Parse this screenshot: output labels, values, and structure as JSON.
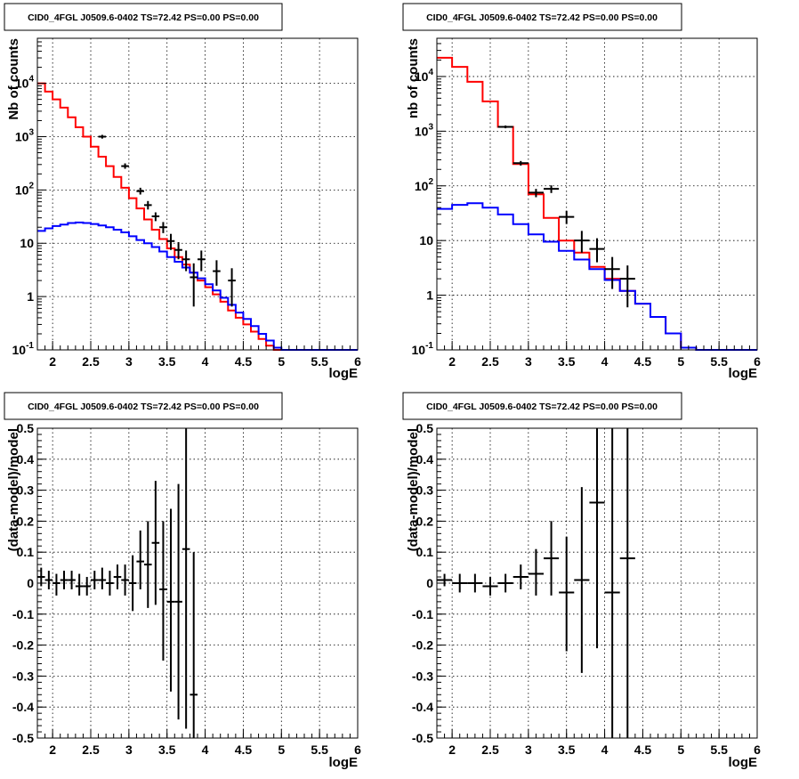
{
  "chart_data": [
    {
      "type": "line",
      "title": "CID0_4FGL J0509.6-0402 TS=72.42 PS=0.00 PS=0.00",
      "xlabel": "logE",
      "ylabel": "Nb of counts",
      "xlim": [
        1.8,
        6.0
      ],
      "ylim": [
        0.1,
        70000
      ],
      "yscale": "log",
      "grid": true,
      "x_ticks": [
        "2",
        "2.5",
        "3",
        "3.5",
        "4",
        "4.5",
        "5",
        "5.5",
        "6"
      ],
      "y_ticks": [
        "10^-1",
        "1",
        "10",
        "10^2",
        "10^3",
        "10^4"
      ],
      "bin_edges": [
        1.8,
        1.9,
        2.0,
        2.1,
        2.2,
        2.3,
        2.4,
        2.5,
        2.6,
        2.7,
        2.8,
        2.9,
        3.0,
        3.1,
        3.2,
        3.3,
        3.4,
        3.5,
        3.6,
        3.7,
        3.8,
        3.9,
        4.0,
        4.1,
        4.2,
        4.3,
        4.4,
        4.5,
        4.6,
        4.7,
        4.8,
        4.9,
        5.0,
        5.1,
        5.2,
        5.3,
        5.4,
        5.5,
        5.6,
        5.7,
        5.8,
        5.9,
        6.0
      ],
      "series": [
        {
          "color": "#ff0000",
          "values": [
            10000,
            7000,
            5000,
            3500,
            2300,
            1500,
            1000,
            650,
            420,
            280,
            175,
            110,
            70,
            45,
            28,
            18,
            12,
            8,
            5.5,
            4,
            2.8,
            2,
            1.5,
            1.1,
            0.8,
            0.55,
            0.4,
            0.3,
            0.22,
            0.16,
            0.12,
            0.1,
            0.1,
            0.1,
            0.1,
            0.1,
            0.1,
            0.1,
            0.1,
            0.1,
            0.1,
            0.1
          ]
        },
        {
          "color": "#0000ff",
          "values": [
            17,
            19,
            21,
            22.5,
            24,
            24.5,
            24,
            23,
            21.5,
            20,
            18,
            16,
            13.5,
            11.5,
            10,
            8.5,
            7,
            5.5,
            4.5,
            3.5,
            2.8,
            2.2,
            1.7,
            1.3,
            0.95,
            0.7,
            0.5,
            0.38,
            0.28,
            0.2,
            0.15,
            0.11,
            0.1,
            0.1,
            0.1,
            0.1,
            0.1,
            0.1,
            0.1,
            0.1,
            0.1,
            0.1
          ]
        },
        {
          "color": "#000000",
          "points": [
            {
              "x": 2.65,
              "y": 1000,
              "lo": 920,
              "hi": 1080
            },
            {
              "x": 2.95,
              "y": 280,
              "lo": 250,
              "hi": 315
            },
            {
              "x": 3.15,
              "y": 95,
              "lo": 82,
              "hi": 110
            },
            {
              "x": 3.25,
              "y": 52,
              "lo": 43,
              "hi": 62
            },
            {
              "x": 3.35,
              "y": 32,
              "lo": 26,
              "hi": 38
            },
            {
              "x": 3.45,
              "y": 20,
              "lo": 15.5,
              "hi": 25
            },
            {
              "x": 3.55,
              "y": 11,
              "lo": 7.5,
              "hi": 15
            },
            {
              "x": 3.65,
              "y": 7.5,
              "lo": 5,
              "hi": 10.5
            },
            {
              "x": 3.75,
              "y": 5,
              "lo": 3,
              "hi": 7.3
            },
            {
              "x": 3.85,
              "y": 2.3,
              "lo": 0.65,
              "hi": 4.2
            },
            {
              "x": 3.95,
              "y": 5,
              "lo": 3,
              "hi": 7.3
            },
            {
              "x": 4.15,
              "y": 3,
              "lo": 1.6,
              "hi": 4.8
            },
            {
              "x": 4.35,
              "y": 2,
              "lo": 0.65,
              "hi": 3.4
            }
          ]
        }
      ]
    },
    {
      "type": "line",
      "title": "CID0_4FGL J0509.6-0402 TS=72.42 PS=0.00 PS=0.00",
      "xlabel": "logE",
      "ylabel": "nb of counts",
      "xlim": [
        1.8,
        6.0
      ],
      "ylim": [
        0.1,
        50000
      ],
      "yscale": "log",
      "grid": true,
      "x_ticks": [
        "2",
        "2.5",
        "3",
        "3.5",
        "4",
        "4.5",
        "5",
        "5.5",
        "6"
      ],
      "y_ticks": [
        "10^-1",
        "1",
        "10",
        "10^2",
        "10^3",
        "10^4"
      ],
      "bin_edges": [
        1.8,
        2.0,
        2.2,
        2.4,
        2.6,
        2.8,
        3.0,
        3.2,
        3.4,
        3.6,
        3.8,
        4.0,
        4.2,
        4.4,
        4.6,
        4.8,
        5.0,
        5.2,
        5.4,
        5.6,
        5.8,
        6.0
      ],
      "series": [
        {
          "color": "#ff0000",
          "values": [
            22000,
            15000,
            8000,
            3500,
            1200,
            250,
            70,
            26,
            10,
            6,
            3.3,
            2,
            1.2,
            0.7,
            0.4,
            0.2,
            0.11,
            0.1,
            0.1,
            0.1,
            0.1
          ]
        },
        {
          "color": "#0000ff",
          "values": [
            38,
            45,
            48,
            40,
            30,
            20,
            13,
            9.5,
            6.5,
            4.5,
            3,
            1.9,
            1.2,
            0.7,
            0.4,
            0.2,
            0.11,
            0.1,
            0.1,
            0.1,
            0.1
          ]
        },
        {
          "color": "#000000",
          "points": [
            {
              "x": 2.7,
              "y": 1200,
              "lo": 1130,
              "hi": 1270
            },
            {
              "x": 2.9,
              "y": 260,
              "lo": 235,
              "hi": 285
            },
            {
              "x": 3.1,
              "y": 75,
              "lo": 62,
              "hi": 88
            },
            {
              "x": 3.3,
              "y": 88,
              "lo": 74,
              "hi": 102
            },
            {
              "x": 3.5,
              "y": 27,
              "lo": 20,
              "hi": 35
            },
            {
              "x": 3.7,
              "y": 10,
              "lo": 6,
              "hi": 15
            },
            {
              "x": 3.9,
              "y": 7,
              "lo": 4,
              "hi": 11
            },
            {
              "x": 4.1,
              "y": 3,
              "lo": 1.3,
              "hi": 5
            },
            {
              "x": 4.3,
              "y": 2,
              "lo": 0.6,
              "hi": 3.5
            }
          ]
        }
      ]
    },
    {
      "type": "scatter",
      "title": "CID0_4FGL J0509.6-0402 TS=72.42 PS=0.00 PS=0.00",
      "xlabel": "logE",
      "ylabel": "(data-model)/model",
      "xlim": [
        1.8,
        6.0
      ],
      "ylim": [
        -0.5,
        0.5
      ],
      "grid": true,
      "x_ticks": [
        "2",
        "2.5",
        "3",
        "3.5",
        "4",
        "4.5",
        "5",
        "5.5",
        "6"
      ],
      "y_ticks": [
        "-0.5",
        "-0.4",
        "-0.3",
        "-0.2",
        "-0.1",
        "0",
        "0.1",
        "0.2",
        "0.3",
        "0.4",
        "0.5"
      ],
      "series": [
        {
          "color": "#000000",
          "points": [
            {
              "x": 1.85,
              "y": 0.02,
              "lo": -0.01,
              "hi": 0.05
            },
            {
              "x": 1.95,
              "y": 0.01,
              "lo": -0.02,
              "hi": 0.04
            },
            {
              "x": 2.05,
              "y": 0.0,
              "lo": -0.04,
              "hi": 0.03
            },
            {
              "x": 2.15,
              "y": 0.01,
              "lo": -0.02,
              "hi": 0.04
            },
            {
              "x": 2.25,
              "y": 0.01,
              "lo": -0.02,
              "hi": 0.04
            },
            {
              "x": 2.35,
              "y": -0.01,
              "lo": -0.04,
              "hi": 0.03
            },
            {
              "x": 2.45,
              "y": -0.01,
              "lo": -0.04,
              "hi": 0.02
            },
            {
              "x": 2.55,
              "y": 0.01,
              "lo": -0.02,
              "hi": 0.04
            },
            {
              "x": 2.65,
              "y": 0.01,
              "lo": -0.02,
              "hi": 0.05
            },
            {
              "x": 2.75,
              "y": 0.0,
              "lo": -0.04,
              "hi": 0.04
            },
            {
              "x": 2.85,
              "y": 0.02,
              "lo": -0.02,
              "hi": 0.06
            },
            {
              "x": 2.95,
              "y": 0.01,
              "lo": -0.04,
              "hi": 0.06
            },
            {
              "x": 3.05,
              "y": 0.0,
              "lo": -0.09,
              "hi": 0.09
            },
            {
              "x": 3.15,
              "y": 0.07,
              "lo": -0.02,
              "hi": 0.17
            },
            {
              "x": 3.25,
              "y": 0.06,
              "lo": -0.08,
              "hi": 0.2
            },
            {
              "x": 3.35,
              "y": 0.13,
              "lo": -0.07,
              "hi": 0.33
            },
            {
              "x": 3.45,
              "y": -0.02,
              "lo": -0.25,
              "hi": 0.2
            },
            {
              "x": 3.55,
              "y": -0.06,
              "lo": -0.35,
              "hi": 0.24
            },
            {
              "x": 3.65,
              "y": -0.06,
              "lo": -0.44,
              "hi": 0.32
            },
            {
              "x": 3.75,
              "y": 0.11,
              "lo": -0.47,
              "hi": 0.5
            },
            {
              "x": 3.85,
              "y": -0.36,
              "lo": -0.5,
              "hi": 0.1
            }
          ]
        }
      ]
    },
    {
      "type": "scatter",
      "title": "CID0_4FGL J0509.6-0402 TS=72.42 PS=0.00 PS=0.00",
      "xlabel": "logE",
      "ylabel": "(data-model)/model",
      "xlim": [
        1.8,
        6.0
      ],
      "ylim": [
        -0.5,
        0.5
      ],
      "grid": true,
      "x_ticks": [
        "2",
        "2.5",
        "3",
        "3.5",
        "4",
        "4.5",
        "5",
        "5.5",
        "6"
      ],
      "y_ticks": [
        "-0.5",
        "-0.4",
        "-0.3",
        "-0.2",
        "-0.1",
        "0",
        "0.1",
        "0.2",
        "0.3",
        "0.4",
        "0.5"
      ],
      "series": [
        {
          "color": "#000000",
          "points": [
            {
              "x": 1.9,
              "y": 0.01,
              "lo": -0.01,
              "hi": 0.03
            },
            {
              "x": 2.1,
              "y": 0.0,
              "lo": -0.03,
              "hi": 0.03
            },
            {
              "x": 2.3,
              "y": 0.0,
              "lo": -0.03,
              "hi": 0.03
            },
            {
              "x": 2.5,
              "y": -0.01,
              "lo": -0.04,
              "hi": 0.02
            },
            {
              "x": 2.7,
              "y": 0.0,
              "lo": -0.03,
              "hi": 0.03
            },
            {
              "x": 2.9,
              "y": 0.02,
              "lo": -0.02,
              "hi": 0.06
            },
            {
              "x": 3.1,
              "y": 0.03,
              "lo": -0.04,
              "hi": 0.11
            },
            {
              "x": 3.3,
              "y": 0.08,
              "lo": -0.04,
              "hi": 0.2
            },
            {
              "x": 3.5,
              "y": -0.03,
              "lo": -0.22,
              "hi": 0.15
            },
            {
              "x": 3.7,
              "y": 0.01,
              "lo": -0.29,
              "hi": 0.31
            },
            {
              "x": 3.9,
              "y": 0.26,
              "lo": -0.21,
              "hi": 0.5
            },
            {
              "x": 4.1,
              "y": -0.03,
              "lo": -0.5,
              "hi": 0.5
            },
            {
              "x": 4.3,
              "y": 0.08,
              "lo": -0.5,
              "hi": 0.5
            }
          ]
        }
      ]
    }
  ]
}
